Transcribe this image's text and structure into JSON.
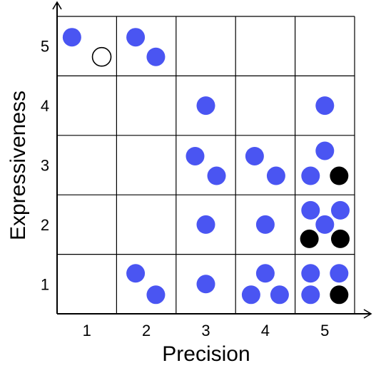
{
  "chart_data": {
    "type": "scatter",
    "xlabel": "Precision",
    "ylabel": "Expressiveness",
    "x_ticks": [
      "1",
      "2",
      "3",
      "4",
      "5"
    ],
    "y_ticks": [
      "1",
      "2",
      "3",
      "4",
      "5"
    ],
    "xlim": [
      0.5,
      5.5
    ],
    "ylim": [
      0.5,
      5.5
    ],
    "grid": true,
    "colors": {
      "blue": "#4a55f2",
      "black": "#000000",
      "open": "#ffffff"
    },
    "cells": [
      {
        "precision": 1,
        "expressiveness": 5,
        "points": [
          {
            "style": "blue",
            "dx": -0.25,
            "dy": 0.15
          },
          {
            "style": "open",
            "dx": 0.25,
            "dy": -0.18
          }
        ]
      },
      {
        "precision": 2,
        "expressiveness": 5,
        "points": [
          {
            "style": "blue",
            "dx": -0.18,
            "dy": 0.15
          },
          {
            "style": "blue",
            "dx": 0.16,
            "dy": -0.18
          }
        ]
      },
      {
        "precision": 3,
        "expressiveness": 4,
        "points": [
          {
            "style": "blue",
            "dx": 0.0,
            "dy": 0.0
          }
        ]
      },
      {
        "precision": 5,
        "expressiveness": 4,
        "points": [
          {
            "style": "blue",
            "dx": 0.0,
            "dy": 0.0
          }
        ]
      },
      {
        "precision": 3,
        "expressiveness": 3,
        "points": [
          {
            "style": "blue",
            "dx": -0.18,
            "dy": 0.15
          },
          {
            "style": "blue",
            "dx": 0.18,
            "dy": -0.18
          }
        ]
      },
      {
        "precision": 4,
        "expressiveness": 3,
        "points": [
          {
            "style": "blue",
            "dx": -0.18,
            "dy": 0.15
          },
          {
            "style": "blue",
            "dx": 0.18,
            "dy": -0.18
          }
        ]
      },
      {
        "precision": 5,
        "expressiveness": 3,
        "points": [
          {
            "style": "blue",
            "dx": 0.0,
            "dy": 0.24
          },
          {
            "style": "blue",
            "dx": -0.24,
            "dy": -0.18
          },
          {
            "style": "black",
            "dx": 0.24,
            "dy": -0.18
          }
        ]
      },
      {
        "precision": 3,
        "expressiveness": 2,
        "points": [
          {
            "style": "blue",
            "dx": 0.0,
            "dy": 0.0
          }
        ]
      },
      {
        "precision": 4,
        "expressiveness": 2,
        "points": [
          {
            "style": "blue",
            "dx": 0.0,
            "dy": 0.0
          }
        ]
      },
      {
        "precision": 5,
        "expressiveness": 2,
        "points": [
          {
            "style": "blue",
            "dx": -0.24,
            "dy": 0.24
          },
          {
            "style": "blue",
            "dx": 0.26,
            "dy": 0.24
          },
          {
            "style": "blue",
            "dx": 0.0,
            "dy": 0.0
          },
          {
            "style": "black",
            "dx": -0.26,
            "dy": -0.24
          },
          {
            "style": "black",
            "dx": 0.26,
            "dy": -0.24
          }
        ]
      },
      {
        "precision": 2,
        "expressiveness": 1,
        "points": [
          {
            "style": "blue",
            "dx": -0.18,
            "dy": 0.18
          },
          {
            "style": "blue",
            "dx": 0.16,
            "dy": -0.18
          }
        ]
      },
      {
        "precision": 3,
        "expressiveness": 1,
        "points": [
          {
            "style": "blue",
            "dx": 0.0,
            "dy": 0.0
          }
        ]
      },
      {
        "precision": 4,
        "expressiveness": 1,
        "points": [
          {
            "style": "blue",
            "dx": 0.0,
            "dy": 0.18
          },
          {
            "style": "blue",
            "dx": -0.24,
            "dy": -0.18
          },
          {
            "style": "blue",
            "dx": 0.24,
            "dy": -0.18
          }
        ]
      },
      {
        "precision": 5,
        "expressiveness": 1,
        "points": [
          {
            "style": "blue",
            "dx": -0.24,
            "dy": 0.18
          },
          {
            "style": "blue",
            "dx": 0.24,
            "dy": 0.18
          },
          {
            "style": "blue",
            "dx": -0.24,
            "dy": -0.18
          },
          {
            "style": "black",
            "dx": 0.24,
            "dy": -0.18
          }
        ]
      }
    ]
  }
}
